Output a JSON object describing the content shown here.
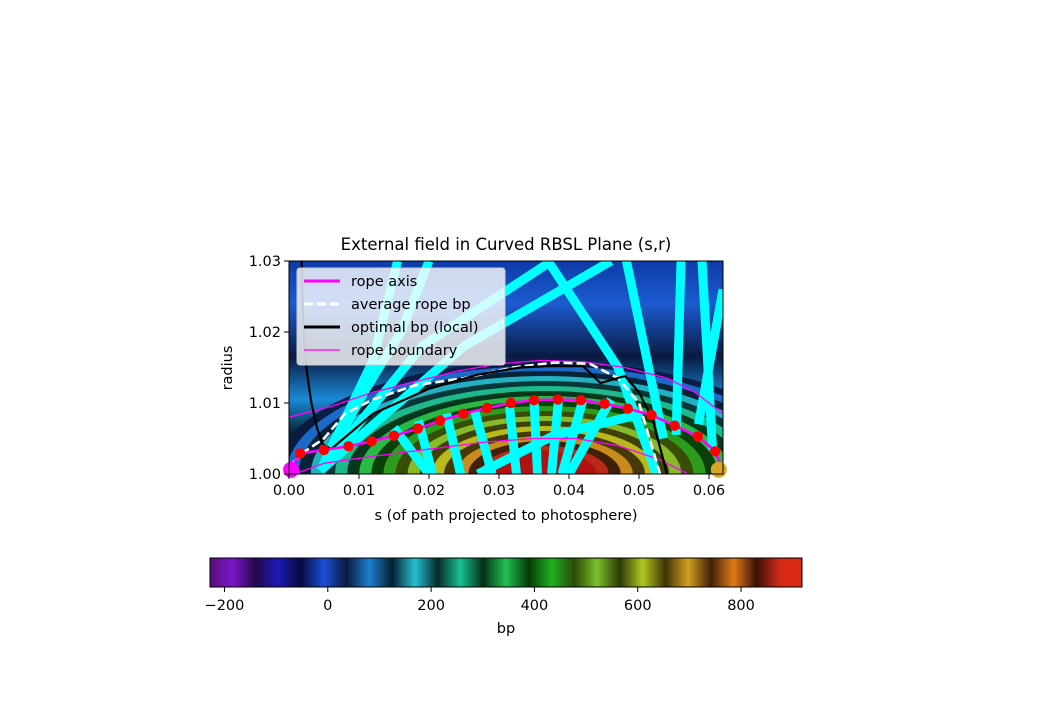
{
  "chart_data": {
    "type": "heatmap",
    "title": "External field in Curved RBSL Plane (s,r)",
    "xlabel": "s (of path projected to photosphere)",
    "ylabel": "radius",
    "xlim": [
      0.0,
      0.062
    ],
    "ylim": [
      1.0,
      1.03
    ],
    "x_ticks": [
      "0.00",
      "0.01",
      "0.02",
      "0.03",
      "0.04",
      "0.05",
      "0.06"
    ],
    "x_tick_values": [
      0.0,
      0.01,
      0.02,
      0.03,
      0.04,
      0.05,
      0.06
    ],
    "y_ticks": [
      "1.00",
      "1.01",
      "1.02",
      "1.03"
    ],
    "y_tick_values": [
      1.0,
      1.01,
      1.02,
      1.03
    ],
    "legend_position": "top-left",
    "colormap": "nipy_spectral (rapidly cycling bands)",
    "series": [
      {
        "name": "rope axis",
        "style": "solid",
        "color": "#ff00ff",
        "x": [
          0.0,
          0.0016,
          0.005,
          0.0085,
          0.0118,
          0.015,
          0.0184,
          0.0216,
          0.0249,
          0.0283,
          0.0317,
          0.035,
          0.0384,
          0.0417,
          0.0451,
          0.0484,
          0.0518,
          0.0551,
          0.0584,
          0.0609,
          0.062
        ],
        "y": [
          1.0005,
          1.0029,
          1.0034,
          1.0039,
          1.0046,
          1.0054,
          1.0064,
          1.0075,
          1.0085,
          1.0093,
          1.01,
          1.0104,
          1.0105,
          1.0104,
          1.0099,
          1.0092,
          1.0083,
          1.0068,
          1.0053,
          1.0032,
          1.0005
        ]
      },
      {
        "name": "average rope bp",
        "style": "dashed",
        "color": "#ffffff",
        "x": [
          0.0005,
          0.002,
          0.005,
          0.008,
          0.012,
          0.018,
          0.025,
          0.032,
          0.038,
          0.043,
          0.047,
          0.05,
          0.053,
          0.0555
        ],
        "y": [
          1.0015,
          1.003,
          1.005,
          1.0085,
          1.0105,
          1.0125,
          1.0135,
          1.015,
          1.0157,
          1.0155,
          1.0135,
          1.01,
          1.0,
          0.999
        ]
      },
      {
        "name": "optimal bp (local)",
        "style": "solid",
        "color": "#000000",
        "x": [
          0.0018,
          0.0019,
          0.002,
          0.0022,
          0.0026,
          0.0032,
          0.004,
          0.0048,
          0.006,
          0.012,
          0.02,
          0.027,
          0.033,
          0.037,
          0.042,
          0.0445,
          0.048,
          0.05,
          0.052,
          0.054
        ],
        "y": [
          1.03,
          1.026,
          1.022,
          1.018,
          1.014,
          1.01,
          1.0065,
          1.0042,
          1.0035,
          1.0085,
          1.012,
          1.014,
          1.015,
          1.0152,
          1.0152,
          1.0128,
          1.0138,
          1.0115,
          1.0075,
          1.0
        ]
      },
      {
        "name": "rope boundary",
        "style": "thin",
        "color": "#ff00ff",
        "x": [
          0.0,
          0.006,
          0.012,
          0.018,
          0.024,
          0.03,
          0.036,
          0.042,
          0.048,
          0.054,
          0.058,
          0.062
        ],
        "y": [
          1.008,
          1.0095,
          1.0115,
          1.013,
          1.0145,
          1.0155,
          1.016,
          1.0158,
          1.015,
          1.0135,
          1.0115,
          1.0085
        ]
      }
    ],
    "rope_boundary_lower": {
      "x": [
        0.0008,
        0.005,
        0.012,
        0.02,
        0.028,
        0.035,
        0.041,
        0.047,
        0.053,
        0.057
      ],
      "y": [
        1.0,
        1.0015,
        1.0025,
        1.0035,
        1.0045,
        1.005,
        1.005,
        1.004,
        1.002,
        1.0
      ]
    },
    "endpoints": [
      {
        "x": 0.0003,
        "y": 1.0006,
        "color": "#ff00ff"
      },
      {
        "x": 0.0614,
        "y": 1.0006,
        "color": "#daa520"
      }
    ],
    "field_lines": [
      {
        "x": [
          0.0045,
          0.012,
          0.0155
        ],
        "y": [
          1.0005,
          1.016,
          1.03
        ]
      },
      {
        "x": [
          0.0045,
          0.011,
          0.016,
          0.02
        ],
        "y": [
          1.0005,
          1.012,
          1.02,
          1.03
        ]
      },
      {
        "x": [
          0.0045,
          0.019,
          0.0375
        ],
        "y": [
          1.0005,
          1.018,
          1.03
        ]
      },
      {
        "x": [
          0.0045,
          0.025,
          0.046
        ],
        "y": [
          1.0005,
          1.018,
          1.03
        ]
      },
      {
        "x": [
          0.015,
          0.02
        ],
        "y": [
          1.0065,
          1.0
        ]
      },
      {
        "x": [
          0.0185,
          0.0205
        ],
        "y": [
          1.0075,
          1.0
        ]
      },
      {
        "x": [
          0.0225,
          0.0245
        ],
        "y": [
          1.0085,
          1.0
        ]
      },
      {
        "x": [
          0.0265,
          0.029
        ],
        "y": [
          1.009,
          1.0
        ]
      },
      {
        "x": [
          0.0315,
          0.0325
        ],
        "y": [
          1.0095,
          1.0
        ]
      },
      {
        "x": [
          0.035,
          0.0355
        ],
        "y": [
          1.0105,
          1.0
        ]
      },
      {
        "x": [
          0.0385,
          0.0375
        ],
        "y": [
          1.0105,
          1.0
        ]
      },
      {
        "x": [
          0.042,
          0.039
        ],
        "y": [
          1.0105,
          1.0
        ]
      },
      {
        "x": [
          0.046,
          0.04
        ],
        "y": [
          1.0105,
          1.0
        ]
      },
      {
        "x": [
          0.027,
          0.038,
          0.0505
        ],
        "y": [
          1.0,
          1.0055,
          1.0085
        ]
      },
      {
        "x": [
          0.037,
          0.047,
          0.0525
        ],
        "y": [
          1.03,
          1.015,
          1.0
        ]
      },
      {
        "x": [
          0.0482,
          0.0535
        ],
        "y": [
          1.03,
          1.005
        ]
      },
      {
        "x": [
          0.056,
          0.0553
        ],
        "y": [
          1.03,
          1.0055
        ]
      },
      {
        "x": [
          0.059,
          0.0605
        ],
        "y": [
          1.03,
          1.0035
        ]
      },
      {
        "x": [
          0.062,
          0.0585
        ],
        "y": [
          1.026,
          1.007
        ]
      }
    ],
    "colorbar": {
      "label": "bp",
      "ticks": [
        "−200",
        "0",
        "200",
        "400",
        "600",
        "800"
      ],
      "tick_values": [
        -200,
        0,
        200,
        400,
        600,
        800
      ],
      "range": [
        -228,
        918
      ]
    }
  }
}
